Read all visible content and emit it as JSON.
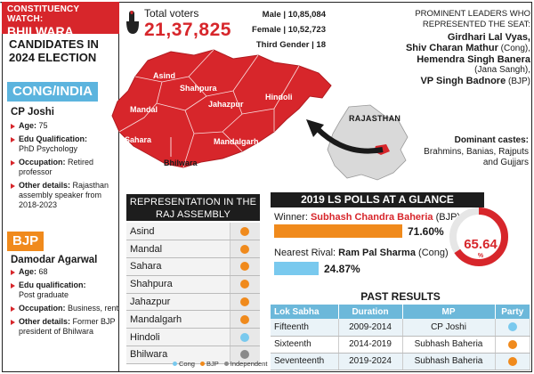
{
  "header": {
    "line1": "CONSTITUENCY WATCH:",
    "line2": "BHILWARA"
  },
  "candidates_title": "CANDIDATES IN 2024 ELECTION",
  "cong": {
    "party": "CONG/INDIA",
    "name": "CP Joshi",
    "details": [
      {
        "k": "Age:",
        "v": "75"
      },
      {
        "k": "Edu Qualification:",
        "v": "PhD Psychology"
      },
      {
        "k": "Occupation:",
        "v": "Retired professor"
      },
      {
        "k": "Other details:",
        "v": "Rajasthan assembly speaker from 2018-2023"
      }
    ]
  },
  "bjp": {
    "party": "BJP",
    "name": "Damodar Agarwal",
    "details": [
      {
        "k": "Age:",
        "v": "68"
      },
      {
        "k": "Edu qualification:",
        "v": "Post graduate"
      },
      {
        "k": "Occupation:",
        "v": "Business, rent"
      },
      {
        "k": "Other details:",
        "v": "Former BJP president of Bhilwara"
      }
    ]
  },
  "voters": {
    "label": "Total voters",
    "total": "21,37,825"
  },
  "gender": {
    "male": "Male | 10,85,084",
    "female": "Female | 10,52,723",
    "third": "Third Gender | 18"
  },
  "map_labels": [
    "Asind",
    "Shahpura",
    "Mandal",
    "Jahazpur",
    "Hindoli",
    "Sahara",
    "Mandalgarh",
    "Bhilwara"
  ],
  "leaders": {
    "heading": "PROMINENT LEADERS WHO REPRESENTED THE SEAT:",
    "l1": "Girdhari Lal Vyas,",
    "l2": "Shiv Charan Mathur",
    "l2p": " (Cong),",
    "l3": "Hemendra Singh Banera",
    "l3p": "(Jana Sangh),",
    "l4": "VP Singh Badnore",
    "l4p": " (BJP)"
  },
  "raj_label": "RAJASTHAN",
  "castes": {
    "heading": "Dominant castes:",
    "text": "Brahmins, Banias, Rajputs and Gujjars"
  },
  "representation": {
    "heading": "REPRESENTATION IN THE RAJ ASSEMBLY",
    "rows": [
      {
        "name": "Asind",
        "party": "BJP"
      },
      {
        "name": "Mandal",
        "party": "BJP"
      },
      {
        "name": "Sahara",
        "party": "BJP"
      },
      {
        "name": "Shahpura",
        "party": "BJP"
      },
      {
        "name": "Jahazpur",
        "party": "BJP"
      },
      {
        "name": "Mandalgarh",
        "party": "BJP"
      },
      {
        "name": "Hindoli",
        "party": "Cong"
      },
      {
        "name": "Bhilwara",
        "party": "Independent"
      }
    ],
    "legend": [
      "Cong",
      "BJP",
      "Independent"
    ]
  },
  "colors": {
    "red": "#d7262b",
    "bjp": "#f08a1c",
    "cong": "#79c9ee",
    "independent": "#8a8a8a",
    "table_head": "#6cb8da"
  },
  "polls": {
    "heading": "2019 LS POLLS AT A GLANCE",
    "winner_label": "Winner: ",
    "winner": "Subhash Chandra Baheria",
    "winner_party": " (BJP)",
    "winner_pct": "71.60%",
    "rival_label": "Nearest Rival: ",
    "rival": "Ram Pal Sharma",
    "rival_party": " (Cong)",
    "rival_pct": "24.87%",
    "turnout_label": "TOTAL TURNOUT",
    "turnout": "65.64",
    "turnout_unit": "%"
  },
  "past": {
    "heading": "PAST RESULTS",
    "cols": [
      "Lok Sabha",
      "Duration",
      "MP",
      "Party"
    ],
    "rows": [
      {
        "ls": "Fifteenth",
        "dur": "2009-2014",
        "mp": "CP Joshi",
        "party": "Cong"
      },
      {
        "ls": "Sixteenth",
        "dur": "2014-2019",
        "mp": "Subhash Baheria",
        "party": "BJP"
      },
      {
        "ls": "Seventeenth",
        "dur": "2019-2024",
        "mp": "Subhash Baheria",
        "party": "BJP"
      }
    ]
  }
}
